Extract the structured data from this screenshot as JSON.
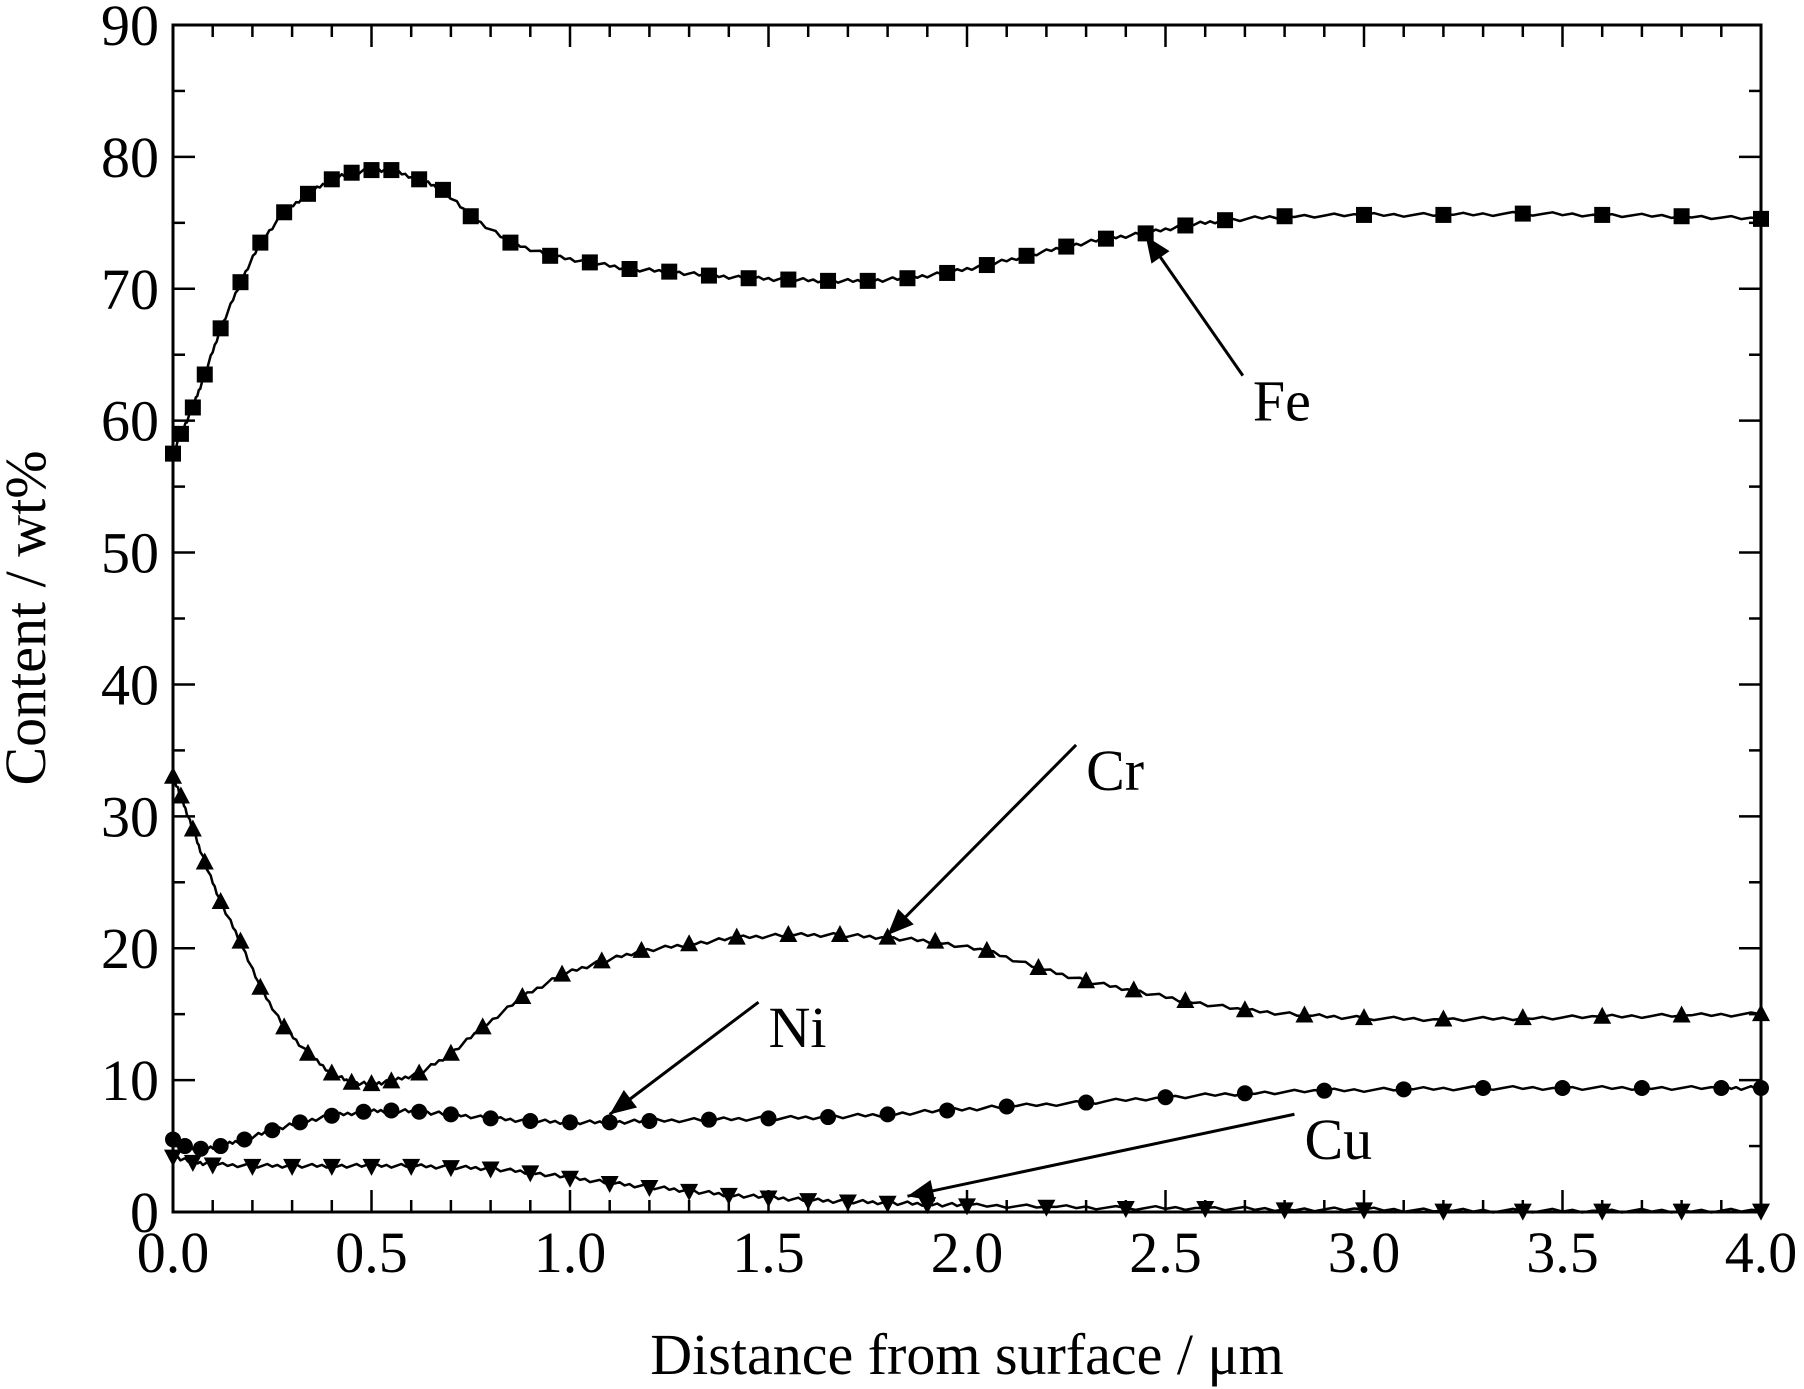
{
  "chart_data": {
    "type": "line",
    "xlabel": "Distance from surface / μm",
    "ylabel": "Content / wt%",
    "xlim": [
      0,
      4.0
    ],
    "ylim": [
      0,
      90
    ],
    "xticks": [
      "0.0",
      "0.5",
      "1.0",
      "1.5",
      "2.0",
      "2.5",
      "3.0",
      "3.5",
      "4.0"
    ],
    "yticks": [
      "0",
      "10",
      "20",
      "30",
      "40",
      "50",
      "60",
      "70",
      "80",
      "90"
    ],
    "grid": false,
    "series": [
      {
        "name": "Fe",
        "marker": "square",
        "x": [
          0.0,
          0.02,
          0.05,
          0.08,
          0.12,
          0.17,
          0.22,
          0.28,
          0.34,
          0.4,
          0.45,
          0.5,
          0.55,
          0.62,
          0.68,
          0.75,
          0.85,
          0.95,
          1.05,
          1.15,
          1.25,
          1.35,
          1.45,
          1.55,
          1.65,
          1.75,
          1.85,
          1.95,
          2.05,
          2.15,
          2.25,
          2.35,
          2.45,
          2.55,
          2.65,
          2.8,
          3.0,
          3.2,
          3.4,
          3.6,
          3.8,
          4.0
        ],
        "y": [
          57.5,
          59.0,
          61.0,
          63.5,
          67.0,
          70.5,
          73.5,
          75.8,
          77.2,
          78.3,
          78.8,
          79.0,
          79.0,
          78.3,
          77.5,
          75.5,
          73.5,
          72.5,
          72.0,
          71.5,
          71.3,
          71.0,
          70.8,
          70.7,
          70.6,
          70.6,
          70.8,
          71.2,
          71.8,
          72.5,
          73.2,
          73.8,
          74.2,
          74.8,
          75.2,
          75.5,
          75.6,
          75.6,
          75.7,
          75.6,
          75.5,
          75.3
        ]
      },
      {
        "name": "Cr",
        "marker": "triangle-up",
        "x": [
          0.0,
          0.02,
          0.05,
          0.08,
          0.12,
          0.17,
          0.22,
          0.28,
          0.34,
          0.4,
          0.45,
          0.5,
          0.55,
          0.62,
          0.7,
          0.78,
          0.88,
          0.98,
          1.08,
          1.18,
          1.3,
          1.42,
          1.55,
          1.68,
          1.8,
          1.92,
          2.05,
          2.18,
          2.3,
          2.42,
          2.55,
          2.7,
          2.85,
          3.0,
          3.2,
          3.4,
          3.6,
          3.8,
          4.0
        ],
        "y": [
          33.0,
          31.5,
          29.0,
          26.5,
          23.5,
          20.5,
          17.0,
          14.0,
          12.0,
          10.5,
          9.8,
          9.7,
          9.9,
          10.5,
          12.0,
          14.0,
          16.3,
          18.0,
          19.0,
          19.8,
          20.3,
          20.8,
          21.0,
          21.0,
          20.8,
          20.5,
          19.8,
          18.5,
          17.5,
          16.8,
          16.0,
          15.3,
          14.9,
          14.7,
          14.6,
          14.7,
          14.8,
          14.9,
          15.0
        ]
      },
      {
        "name": "Ni",
        "marker": "circle",
        "x": [
          0.0,
          0.03,
          0.07,
          0.12,
          0.18,
          0.25,
          0.32,
          0.4,
          0.48,
          0.55,
          0.62,
          0.7,
          0.8,
          0.9,
          1.0,
          1.1,
          1.2,
          1.35,
          1.5,
          1.65,
          1.8,
          1.95,
          2.1,
          2.3,
          2.5,
          2.7,
          2.9,
          3.1,
          3.3,
          3.5,
          3.7,
          3.9,
          4.0
        ],
        "y": [
          5.5,
          5.0,
          4.8,
          5.0,
          5.5,
          6.2,
          6.8,
          7.3,
          7.6,
          7.7,
          7.6,
          7.4,
          7.1,
          6.9,
          6.8,
          6.8,
          6.9,
          7.0,
          7.1,
          7.2,
          7.4,
          7.7,
          8.0,
          8.3,
          8.7,
          9.0,
          9.2,
          9.3,
          9.4,
          9.4,
          9.4,
          9.4,
          9.4
        ]
      },
      {
        "name": "Cu",
        "marker": "triangle-down",
        "x": [
          0.0,
          0.05,
          0.1,
          0.2,
          0.3,
          0.4,
          0.5,
          0.6,
          0.7,
          0.8,
          0.9,
          1.0,
          1.1,
          1.2,
          1.3,
          1.4,
          1.5,
          1.6,
          1.7,
          1.8,
          1.9,
          2.0,
          2.2,
          2.4,
          2.6,
          2.8,
          3.0,
          3.2,
          3.4,
          3.6,
          3.8,
          4.0
        ],
        "y": [
          4.2,
          3.8,
          3.6,
          3.5,
          3.5,
          3.5,
          3.5,
          3.5,
          3.4,
          3.3,
          3.0,
          2.6,
          2.2,
          1.9,
          1.6,
          1.3,
          1.1,
          0.9,
          0.8,
          0.7,
          0.6,
          0.5,
          0.4,
          0.3,
          0.3,
          0.2,
          0.2,
          0.1,
          0.1,
          0.1,
          0.1,
          0.1
        ]
      }
    ],
    "annotations": [
      {
        "label": "Fe",
        "target": [
          2.45,
          74.0
        ],
        "text_at": [
          2.72,
          60.0
        ]
      },
      {
        "label": "Cr",
        "target": [
          1.8,
          21.0
        ],
        "text_at": [
          2.3,
          32.0
        ]
      },
      {
        "label": "Ni",
        "target": [
          1.1,
          7.4
        ],
        "text_at": [
          1.5,
          12.5
        ]
      },
      {
        "label": "Cu",
        "target": [
          1.85,
          1.2
        ],
        "text_at": [
          2.85,
          4.0
        ]
      }
    ]
  }
}
